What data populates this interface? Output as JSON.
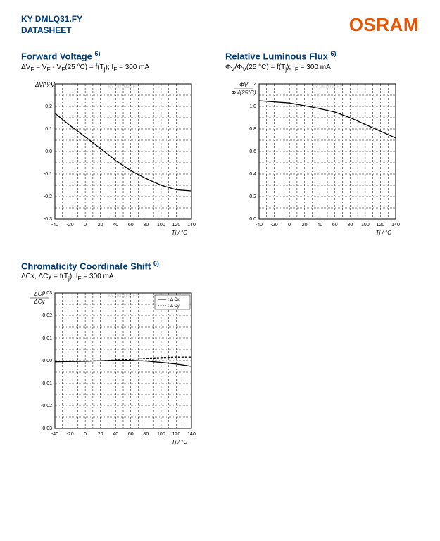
{
  "header": {
    "product": "KY DMLQ31.FY",
    "subtitle": "DATASHEET",
    "brand": "OSRAM"
  },
  "chart1": {
    "title": "Forward Voltage",
    "footnote": "6)",
    "subtitle": "ΔVF = VF - VF(25 °C) = f(Tj); IF = 300 mA",
    "ylabel": "ΔVF / V",
    "xlabel": "Tj / °C",
    "xlim": [
      -40,
      140
    ],
    "xtick_step": 20,
    "ylim": [
      -0.3,
      0.3
    ],
    "ytick_step": 0.1,
    "background": "#ffffff",
    "line_color": "#000000",
    "points": [
      [
        -40,
        0.17
      ],
      [
        -20,
        0.115
      ],
      [
        0,
        0.065
      ],
      [
        25,
        0.0
      ],
      [
        40,
        -0.04
      ],
      [
        60,
        -0.085
      ],
      [
        80,
        -0.12
      ],
      [
        100,
        -0.15
      ],
      [
        120,
        -0.17
      ],
      [
        140,
        -0.175
      ]
    ],
    "watermark": "KY DMLQ31.FY"
  },
  "chart2": {
    "title": "Relative Luminous Flux",
    "footnote": "6)",
    "subtitle": "ΦV/ΦV(25 °C) = f(Tj); IF = 300 mA",
    "ylabel_top": "ΦV",
    "ylabel_bot": "ΦV(25°C)",
    "xlabel": "Tj / °C",
    "xlim": [
      -40,
      140
    ],
    "xtick_step": 20,
    "ylim": [
      0.0,
      1.2
    ],
    "ytick_step": 0.2,
    "background": "#ffffff",
    "line_color": "#000000",
    "points": [
      [
        -40,
        1.05
      ],
      [
        -20,
        1.04
      ],
      [
        0,
        1.03
      ],
      [
        25,
        1.0
      ],
      [
        40,
        0.98
      ],
      [
        60,
        0.95
      ],
      [
        80,
        0.9
      ],
      [
        100,
        0.84
      ],
      [
        120,
        0.78
      ],
      [
        140,
        0.72
      ]
    ],
    "watermark": "KY DMLQ31.FY"
  },
  "chart3": {
    "title": "Chromaticity Coordinate Shift",
    "footnote": "6)",
    "subtitle": "ΔCx, ΔCy = f(Tj); IF = 300 mA",
    "ylabel_top": "ΔCx",
    "ylabel_bot": "ΔCy",
    "xlabel": "Tj / °C",
    "xlim": [
      -40,
      140
    ],
    "xtick_step": 20,
    "ylim": [
      -0.03,
      0.03
    ],
    "ytick_step": 0.01,
    "background": "#ffffff",
    "line_color": "#000000",
    "legend": {
      "cx": "Δ Cx",
      "cy": "Δ Cy"
    },
    "cx_points": [
      [
        -40,
        -0.0005
      ],
      [
        -20,
        -0.0004
      ],
      [
        0,
        -0.0003
      ],
      [
        25,
        0.0
      ],
      [
        40,
        0.0002
      ],
      [
        60,
        0.0001
      ],
      [
        80,
        -0.0002
      ],
      [
        100,
        -0.0008
      ],
      [
        120,
        -0.0015
      ],
      [
        140,
        -0.0025
      ]
    ],
    "cy_points": [
      [
        -40,
        -0.0005
      ],
      [
        -20,
        -0.0004
      ],
      [
        0,
        -0.0002
      ],
      [
        25,
        0.0
      ],
      [
        40,
        0.0003
      ],
      [
        60,
        0.0006
      ],
      [
        80,
        0.001
      ],
      [
        100,
        0.0013
      ],
      [
        120,
        0.0015
      ],
      [
        140,
        0.0015
      ]
    ],
    "watermark": "KY DMLQ31.FY"
  }
}
